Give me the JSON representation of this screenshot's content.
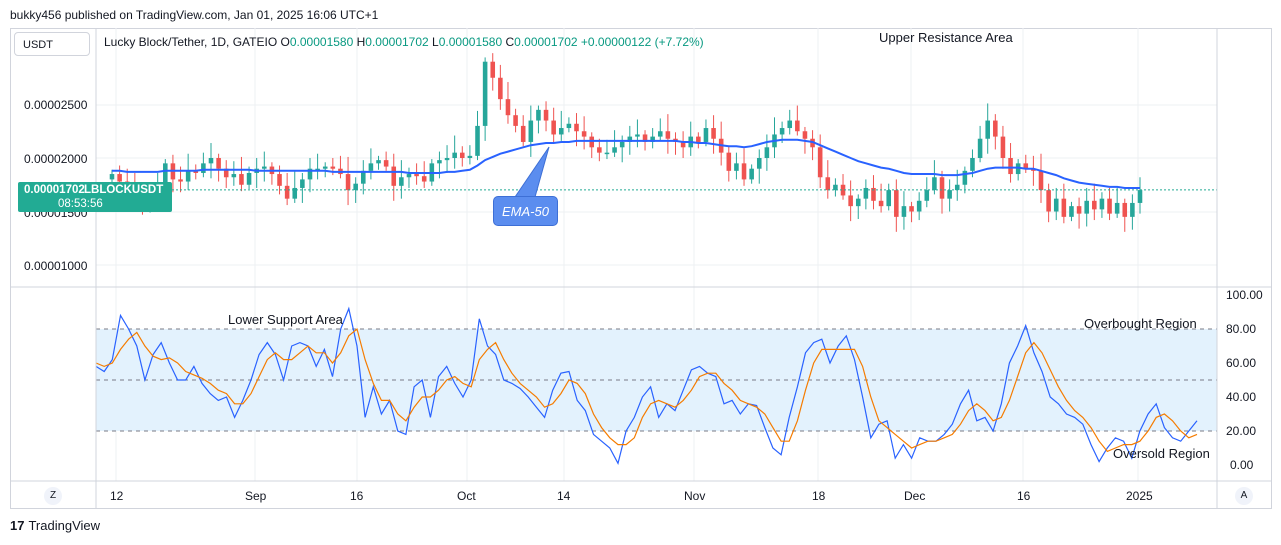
{
  "header": {
    "published_line": "bukky456 published on TradingView.com, Jan 01, 2025 16:06 UTC+1"
  },
  "toolbar": {
    "currency_button": "USDT"
  },
  "legend": {
    "symbol": "Lucky Block/Tether, 1D, GATEIO",
    "o_label": "O",
    "o_value": "0.00001580",
    "h_label": "H",
    "h_value": "0.00001702",
    "l_label": "L",
    "l_value": "0.00001580",
    "c_label": "C",
    "c_value": "0.00001702",
    "change": "+0.00000122 (+7.72%)"
  },
  "price_badge": {
    "price": "0.00001702",
    "symbol": "LBLOCKUSDT",
    "countdown": "08:53:56",
    "partial_label": "0.00001500"
  },
  "annotations": {
    "upper_resistance": "Upper Resistance Area",
    "lower_support": "Lower Support Area",
    "ema_callout": "EMA-50",
    "overbought": "Overbought Region",
    "oversold": "Oversold Region"
  },
  "bottom_controls": {
    "left_button": "Z",
    "right_button": "A"
  },
  "footer": {
    "brand": "TradingView",
    "logo_glyph": "17"
  },
  "colors": {
    "up": "#26a69a",
    "down": "#ef5350",
    "ema": "#2962ff",
    "stoch_k": "#2962ff",
    "stoch_d": "#f57c00",
    "stoch_band": "#e3f2fd",
    "price_line": "#22ab94"
  },
  "chart_data": [
    {
      "type": "candlestick",
      "title": "Lucky Block/Tether, 1D, GATEIO",
      "y_ticks": [
        "0.00002500",
        "0.00002000",
        "0.00001000"
      ],
      "ylim": [
        8.5e-06,
        3e-05
      ],
      "x_ticks": [
        "12",
        "Sep",
        "16",
        "Oct",
        "14",
        "Nov",
        "18",
        "Dec",
        "16",
        "2025"
      ],
      "last_price": 1.702e-05,
      "series": [
        {
          "name": "candles",
          "close": [
            1.85,
            1.78,
            1.7,
            1.6,
            1.55,
            1.62,
            1.72,
            1.95,
            1.8,
            1.78,
            1.88,
            1.86,
            1.95,
            2.0,
            1.9,
            1.82,
            1.85,
            1.75,
            1.86,
            1.9,
            1.92,
            1.85,
            1.74,
            1.62,
            1.72,
            1.8,
            1.9,
            1.9,
            1.92,
            1.9,
            1.85,
            1.7,
            1.76,
            1.88,
            1.95,
            1.98,
            1.92,
            1.74,
            1.82,
            1.85,
            1.83,
            1.78,
            1.95,
            1.98,
            2.0,
            2.05,
            2.0,
            2.02,
            2.3,
            2.9,
            2.75,
            2.55,
            2.4,
            2.3,
            2.15,
            2.35,
            2.45,
            2.35,
            2.22,
            2.28,
            2.32,
            2.25,
            2.2,
            2.1,
            2.05,
            2.05,
            2.1,
            2.15,
            2.2,
            2.22,
            2.15,
            2.2,
            2.25,
            2.18,
            2.15,
            2.1,
            2.2,
            2.15,
            2.28,
            2.18,
            2.05,
            1.88,
            1.95,
            1.8,
            1.9,
            2.0,
            2.1,
            2.22,
            2.28,
            2.35,
            2.25,
            2.18,
            2.1,
            1.82,
            1.7,
            1.75,
            1.65,
            1.55,
            1.62,
            1.72,
            1.6,
            1.55,
            1.7,
            1.45,
            1.55,
            1.5,
            1.6,
            1.7,
            1.82,
            1.62,
            1.7,
            1.75,
            1.88,
            2.0,
            2.18,
            2.35,
            2.2,
            2.0,
            1.85,
            1.95,
            1.9,
            1.88,
            1.7,
            1.5,
            1.62,
            1.45,
            1.55,
            1.48,
            1.6,
            1.52,
            1.62,
            1.48,
            1.58,
            1.45,
            1.58,
            1.7
          ]
        },
        {
          "name": "EMA-50",
          "values": [
            1.88,
            1.88,
            1.87,
            1.87,
            1.87,
            1.87,
            1.87,
            1.88,
            1.88,
            1.88,
            1.88,
            1.88,
            1.89,
            1.89,
            1.89,
            1.89,
            1.89,
            1.89,
            1.89,
            1.88,
            1.88,
            1.88,
            1.88,
            1.88,
            1.88,
            1.88,
            1.88,
            1.88,
            1.88,
            1.87,
            1.87,
            1.87,
            1.87,
            1.87,
            1.87,
            1.87,
            1.87,
            1.87,
            1.87,
            1.86,
            1.86,
            1.86,
            1.86,
            1.86,
            1.87,
            1.87,
            1.88,
            1.89,
            1.93,
            1.98,
            2.01,
            2.04,
            2.06,
            2.08,
            2.1,
            2.12,
            2.13,
            2.14,
            2.14,
            2.15,
            2.15,
            2.16,
            2.16,
            2.16,
            2.16,
            2.16,
            2.16,
            2.16,
            2.16,
            2.16,
            2.16,
            2.16,
            2.16,
            2.16,
            2.16,
            2.15,
            2.15,
            2.14,
            2.14,
            2.13,
            2.12,
            2.11,
            2.11,
            2.1,
            2.11,
            2.13,
            2.15,
            2.16,
            2.17,
            2.17,
            2.17,
            2.16,
            2.15,
            2.12,
            2.09,
            2.06,
            2.03,
            2.0,
            1.97,
            1.95,
            1.93,
            1.91,
            1.9,
            1.88,
            1.86,
            1.85,
            1.85,
            1.85,
            1.85,
            1.84,
            1.84,
            1.84,
            1.85,
            1.86,
            1.88,
            1.9,
            1.91,
            1.91,
            1.91,
            1.91,
            1.9,
            1.9,
            1.88,
            1.86,
            1.84,
            1.81,
            1.79,
            1.77,
            1.76,
            1.75,
            1.74,
            1.73,
            1.73,
            1.72,
            1.72,
            1.72
          ]
        }
      ],
      "scale_note": "values in units of 1e-5"
    },
    {
      "type": "line",
      "title": "",
      "y_ticks": [
        "100.00",
        "80.00",
        "60.00",
        "40.00",
        "20.00",
        "0.00"
      ],
      "ylim": [
        0,
        100
      ],
      "bands": {
        "upper": 80,
        "middle": 50,
        "lower": 20
      },
      "series": [
        {
          "name": "%K",
          "values": [
            58,
            55,
            62,
            88,
            80,
            70,
            50,
            65,
            72,
            60,
            50,
            50,
            58,
            48,
            42,
            38,
            40,
            28,
            38,
            50,
            65,
            72,
            65,
            50,
            70,
            72,
            70,
            58,
            68,
            52,
            80,
            92,
            70,
            28,
            46,
            30,
            38,
            20,
            18,
            46,
            50,
            28,
            52,
            58,
            48,
            40,
            50,
            86,
            70,
            65,
            50,
            48,
            45,
            40,
            34,
            28,
            44,
            54,
            55,
            38,
            32,
            18,
            14,
            10,
            1,
            20,
            28,
            40,
            46,
            28,
            36,
            32,
            44,
            56,
            58,
            54,
            52,
            36,
            38,
            30,
            36,
            35,
            22,
            10,
            6,
            28,
            46,
            66,
            72,
            74,
            60,
            70,
            76,
            62,
            40,
            16,
            24,
            26,
            4,
            12,
            4,
            16,
            14,
            14,
            18,
            24,
            36,
            44,
            26,
            28,
            20,
            36,
            60,
            70,
            82,
            66,
            55,
            40,
            36,
            30,
            28,
            24,
            12,
            2,
            10,
            16,
            14,
            4,
            20,
            30,
            36,
            22,
            16,
            14,
            20,
            26
          ]
        },
        {
          "name": "%D",
          "values": [
            60,
            58,
            60,
            68,
            74,
            78,
            70,
            64,
            62,
            63,
            60,
            55,
            53,
            51,
            48,
            44,
            42,
            36,
            36,
            42,
            52,
            62,
            66,
            62,
            62,
            66,
            70,
            66,
            66,
            60,
            66,
            76,
            80,
            62,
            48,
            38,
            38,
            30,
            26,
            34,
            40,
            40,
            44,
            50,
            52,
            48,
            46,
            62,
            68,
            72,
            62,
            54,
            48,
            44,
            40,
            34,
            36,
            42,
            50,
            48,
            42,
            30,
            22,
            16,
            12,
            12,
            16,
            28,
            36,
            38,
            36,
            34,
            38,
            44,
            52,
            54,
            54,
            48,
            44,
            38,
            36,
            34,
            30,
            22,
            14,
            14,
            26,
            44,
            60,
            68,
            68,
            68,
            68,
            68,
            58,
            40,
            26,
            22,
            18,
            14,
            10,
            12,
            14,
            14,
            16,
            18,
            24,
            32,
            36,
            32,
            26,
            28,
            38,
            52,
            66,
            72,
            66,
            56,
            46,
            38,
            32,
            28,
            22,
            14,
            8,
            10,
            12,
            12,
            14,
            20,
            28,
            30,
            26,
            20,
            16,
            18
          ]
        }
      ]
    }
  ]
}
